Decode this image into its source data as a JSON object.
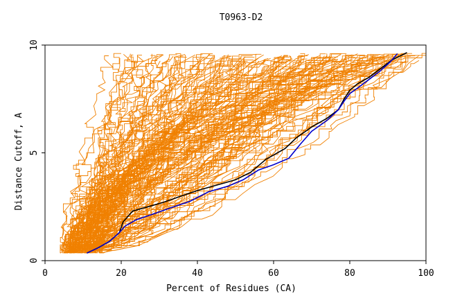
{
  "chart_data": {
    "type": "line",
    "title": "T0963-D2",
    "xlabel": "Percent of Residues (CA)",
    "ylabel": "Distance Cutoff, A",
    "xlim": [
      0,
      100
    ],
    "ylim": [
      0,
      10
    ],
    "x_ticks": [
      "0",
      "20",
      "40",
      "60",
      "80",
      "100"
    ],
    "y_ticks": [
      "0",
      "5",
      "10"
    ],
    "grid": false,
    "colors": {
      "background_models": "#f08000",
      "highlight_black": "#000000",
      "highlight_blue": "#0000cc"
    },
    "series": [
      {
        "role": "highlight_black",
        "x": [
          11,
          14,
          17,
          19.5,
          20.5,
          23,
          27,
          31,
          35,
          40,
          45,
          50,
          54,
          58,
          63,
          66,
          70,
          74,
          77,
          78.5,
          80,
          82,
          85,
          88,
          91,
          95
        ],
        "y": [
          0.35,
          0.6,
          0.9,
          1.3,
          1.8,
          2.3,
          2.5,
          2.7,
          2.95,
          3.25,
          3.5,
          3.75,
          4.1,
          4.7,
          5.2,
          5.7,
          6.2,
          6.6,
          7.0,
          7.5,
          7.9,
          8.2,
          8.5,
          8.9,
          9.3,
          9.65
        ]
      },
      {
        "role": "highlight_blue",
        "x": [
          11,
          14,
          17,
          19.5,
          21,
          24,
          29,
          33,
          38,
          43,
          48,
          52,
          56,
          60,
          64,
          67,
          70,
          74,
          77,
          78.5,
          80,
          82,
          85,
          88,
          90.5,
          92.5
        ],
        "y": [
          0.35,
          0.6,
          0.9,
          1.3,
          1.6,
          1.9,
          2.2,
          2.45,
          2.75,
          3.2,
          3.45,
          3.75,
          4.2,
          4.45,
          4.75,
          5.4,
          6.0,
          6.5,
          7.0,
          7.4,
          7.75,
          8.0,
          8.4,
          8.8,
          9.2,
          9.6
        ]
      }
    ],
    "background_model_count": 150
  }
}
